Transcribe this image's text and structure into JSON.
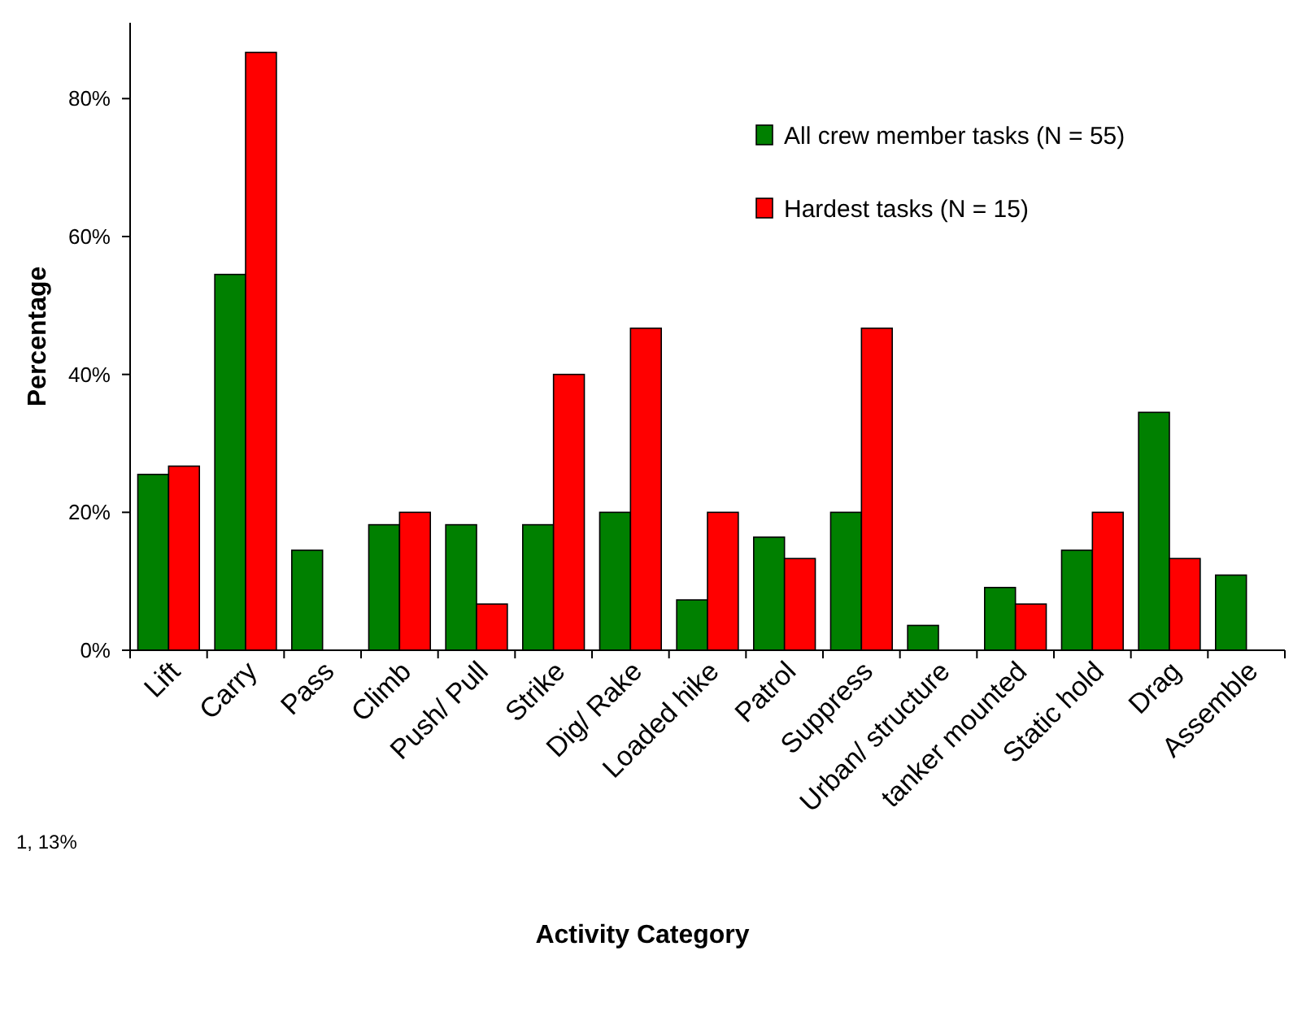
{
  "chart_data": {
    "type": "bar",
    "xlabel": "Activity Category",
    "ylabel": "Percentage",
    "categories": [
      "Lift",
      "Carry",
      "Pass",
      "Climb",
      "Push/ Pull",
      "Strike",
      "Dig/ Rake",
      "Loaded hike",
      "Patrol",
      "Suppress",
      "Urban/ structure",
      "tanker mounted",
      "Static hold",
      "Drag",
      "Assemble"
    ],
    "series": [
      {
        "name": "All crew member tasks (N = 55)",
        "color": "#008000",
        "values": [
          25.5,
          54.5,
          14.5,
          18.2,
          18.2,
          18.2,
          20,
          7.3,
          16.4,
          20,
          3.6,
          9.1,
          14.5,
          34.5,
          10.9
        ]
      },
      {
        "name": "Hardest tasks (N = 15)",
        "color": "#ff0000",
        "values": [
          26.7,
          86.7,
          0,
          20,
          6.7,
          40,
          46.7,
          20,
          13.3,
          46.7,
          0,
          6.7,
          20,
          13.3,
          0
        ]
      }
    ],
    "ylim": [
      0,
      91
    ],
    "yticks": [
      {
        "value": 0,
        "label": "0%"
      },
      {
        "value": 20,
        "label": "20%"
      },
      {
        "value": 40,
        "label": "40%"
      },
      {
        "value": 60,
        "label": "60%"
      },
      {
        "value": 80,
        "label": "80%"
      }
    ],
    "grid": false,
    "legend": "top right",
    "annotations": [
      "1, 13%"
    ]
  }
}
